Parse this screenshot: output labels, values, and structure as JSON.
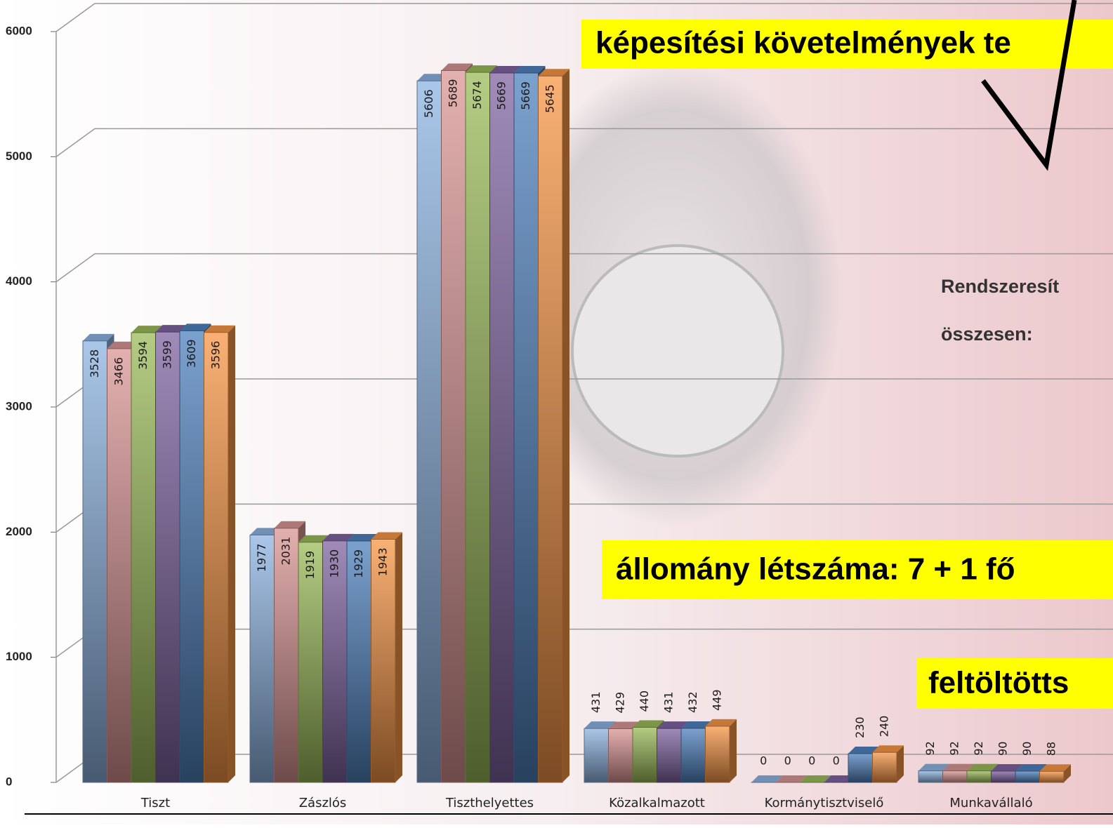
{
  "chart_data": {
    "type": "bar",
    "categories": [
      "Tiszt",
      "Zászlós",
      "Tiszthelyettes",
      "Közalkalmazott",
      "Kormánytisztviselő",
      "Munkavállaló"
    ],
    "series": [
      {
        "color": "#8db4e2",
        "values": [
          3528,
          1977,
          5606,
          431,
          0,
          92
        ]
      },
      {
        "color": "#d99694",
        "values": [
          3466,
          2031,
          5689,
          429,
          0,
          92
        ]
      },
      {
        "color": "#9bbb59",
        "values": [
          3594,
          1919,
          5674,
          440,
          0,
          92
        ]
      },
      {
        "color": "#8064a2",
        "values": [
          3599,
          1930,
          5669,
          431,
          0,
          90
        ]
      },
      {
        "color": "#4f81bd",
        "values": [
          3609,
          1929,
          5669,
          432,
          230,
          90
        ]
      },
      {
        "color": "#f79646",
        "values": [
          3596,
          1943,
          5645,
          449,
          240,
          88
        ]
      }
    ],
    "ylim": [
      0,
      6000
    ],
    "yticks": [
      0,
      1000,
      2000,
      3000,
      4000,
      5000,
      6000
    ],
    "grid": true,
    "annotations": [
      "képesítési követelmények  te",
      "Rendszeresít",
      "összesen:",
      "állomány létszáma: 7 + 1 fő",
      "feltöltötts"
    ]
  }
}
